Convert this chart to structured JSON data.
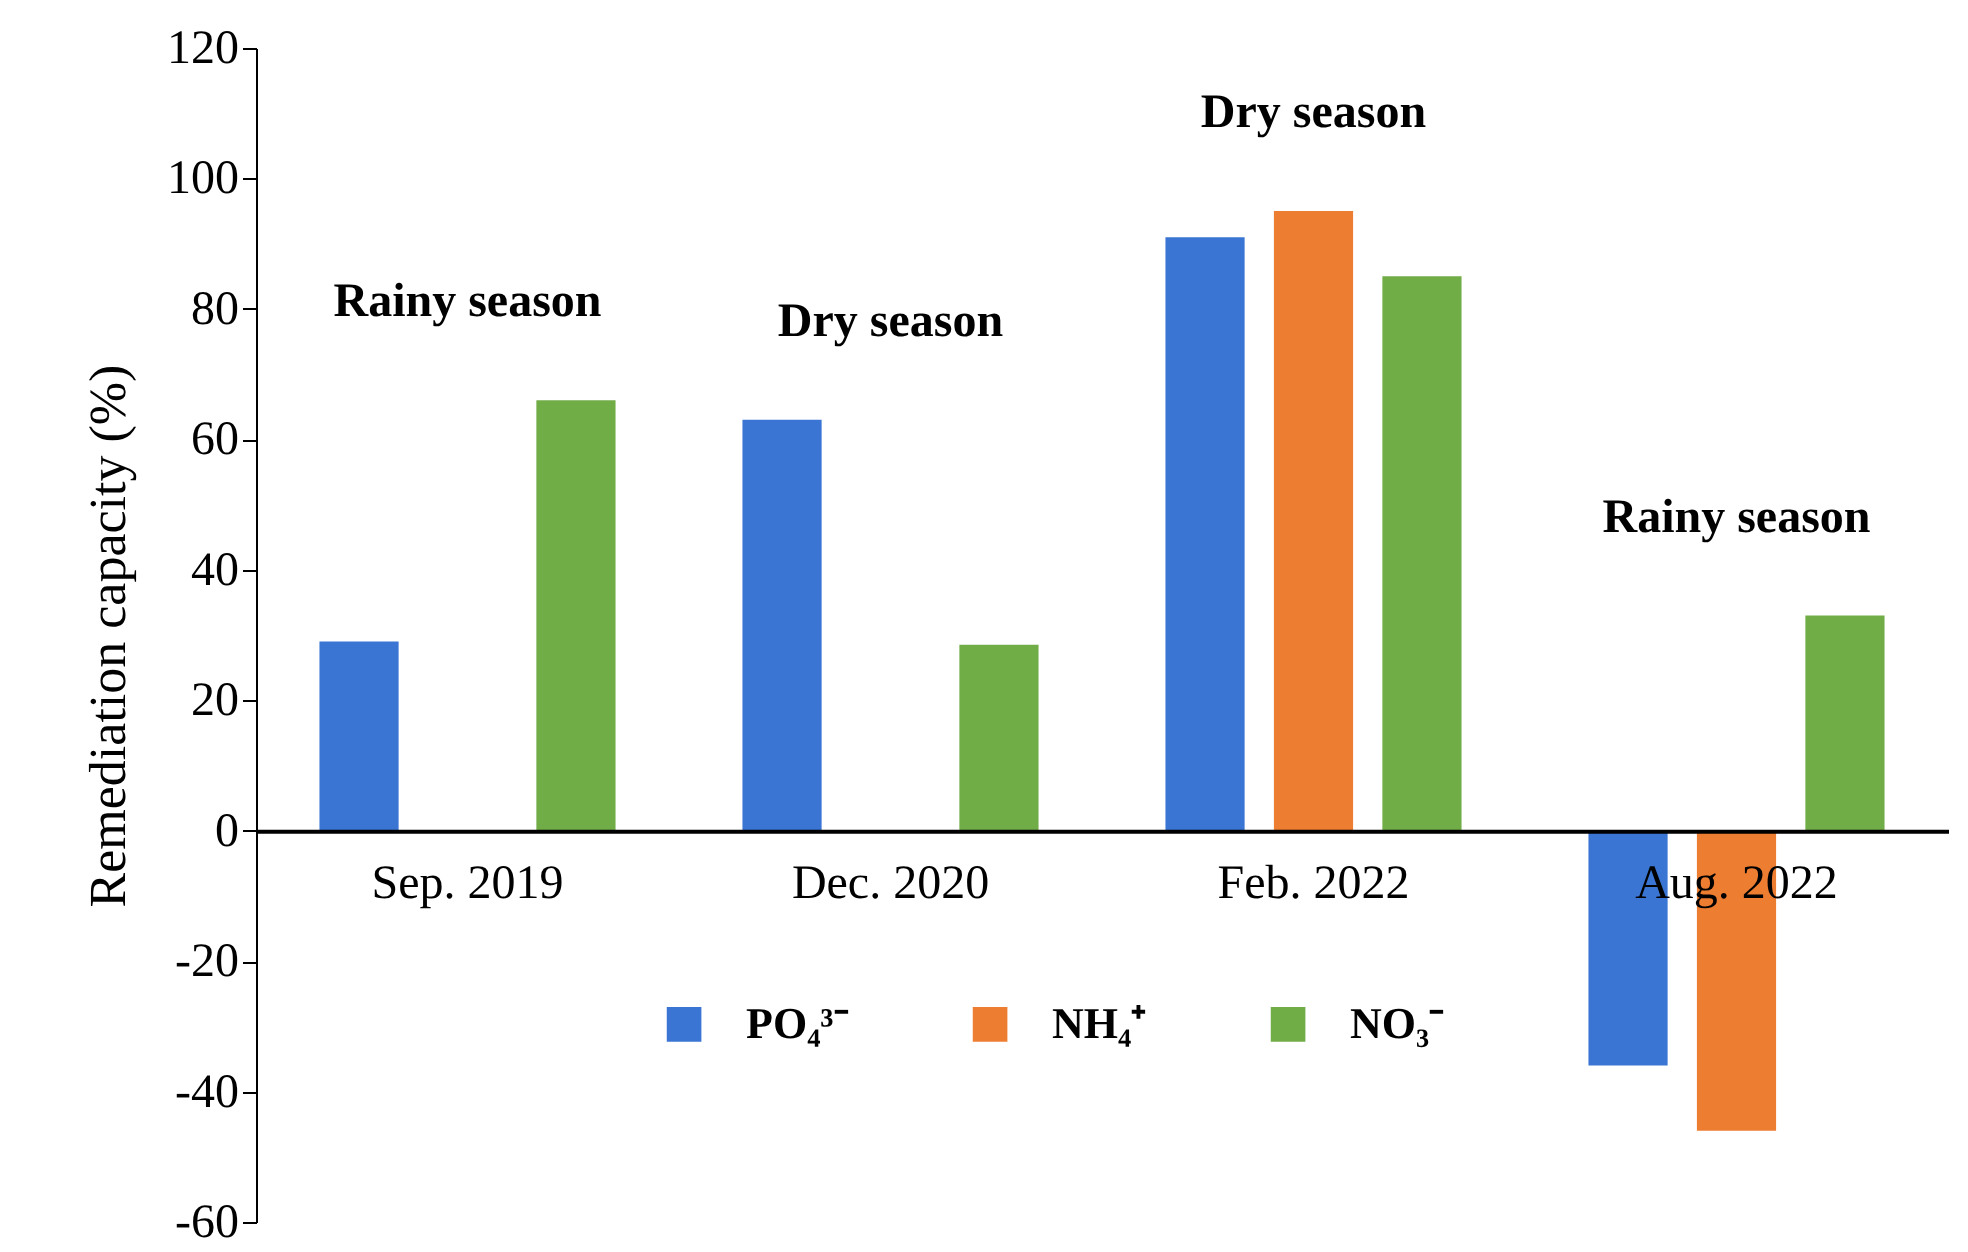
{
  "chart_data": {
    "type": "bar",
    "ylabel": "Remediation capacity (%)",
    "categories": [
      "Sep. 2019",
      "Dec. 2020",
      "Feb. 2022",
      "Aug. 2022"
    ],
    "series": [
      {
        "name": "PO₄³⁻",
        "color": "#3a75d4",
        "values": [
          29,
          63,
          91,
          -36
        ]
      },
      {
        "name": "NH₄⁺",
        "color": "#ed7d31",
        "values": [
          null,
          null,
          95,
          -46
        ]
      },
      {
        "name": "NO₃⁻",
        "color": "#70ad47",
        "values": [
          66,
          28.5,
          85,
          33
        ]
      }
    ],
    "ylim": [
      -60,
      120
    ],
    "yticks": [
      -60,
      -40,
      -20,
      0,
      20,
      40,
      60,
      80,
      100,
      120
    ],
    "grid": false,
    "legend": "bottom",
    "annotations": [
      "Rainy season",
      "Dry season",
      "Dry season",
      "Rainy season"
    ]
  }
}
